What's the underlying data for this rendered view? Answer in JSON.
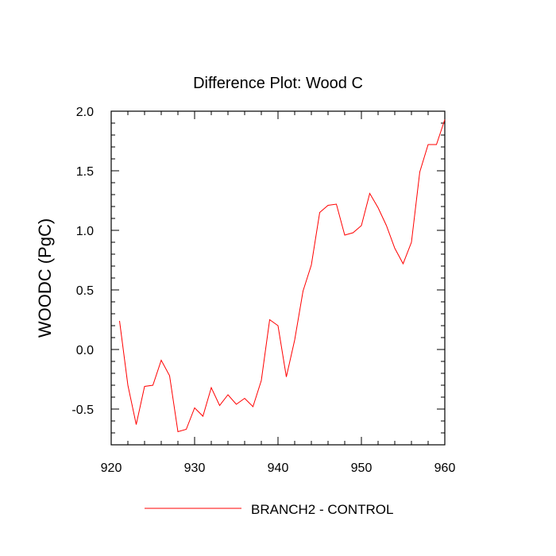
{
  "chart_data": {
    "type": "line",
    "title": "Difference Plot: Wood C",
    "xlabel": "",
    "ylabel": "WOODC  (PgC)",
    "xlim": [
      920,
      960
    ],
    "ylim": [
      -0.8,
      2.0
    ],
    "xticks": [
      920,
      930,
      940,
      950,
      960
    ],
    "xtick_labels": [
      "920",
      "930",
      "940",
      "950",
      "960"
    ],
    "yticks": [
      -0.5,
      0.0,
      0.5,
      1.0,
      1.5,
      2.0
    ],
    "ytick_labels": [
      "-0.5",
      "0.0",
      "0.5",
      "1.0",
      "1.5",
      "2.0"
    ],
    "grid": false,
    "legend_position": "bottom-center",
    "series": [
      {
        "name": "BRANCH2 - CONTROL",
        "color": "#ff0000",
        "x": [
          921,
          922,
          923,
          924,
          925,
          926,
          927,
          928,
          929,
          930,
          931,
          932,
          933,
          934,
          935,
          936,
          937,
          938,
          939,
          940,
          941,
          942,
          943,
          944,
          945,
          946,
          947,
          948,
          949,
          950,
          951,
          952,
          953,
          954,
          955,
          956,
          957,
          958,
          959,
          960
        ],
        "y": [
          0.24,
          -0.3,
          -0.63,
          -0.31,
          -0.3,
          -0.09,
          -0.22,
          -0.69,
          -0.67,
          -0.49,
          -0.56,
          -0.32,
          -0.47,
          -0.38,
          -0.46,
          -0.41,
          -0.48,
          -0.26,
          0.25,
          0.2,
          -0.23,
          0.08,
          0.49,
          0.71,
          1.15,
          1.21,
          1.22,
          0.96,
          0.98,
          1.04,
          1.31,
          1.19,
          1.04,
          0.85,
          0.72,
          0.9,
          1.49,
          1.72,
          1.72,
          1.93
        ]
      }
    ]
  }
}
